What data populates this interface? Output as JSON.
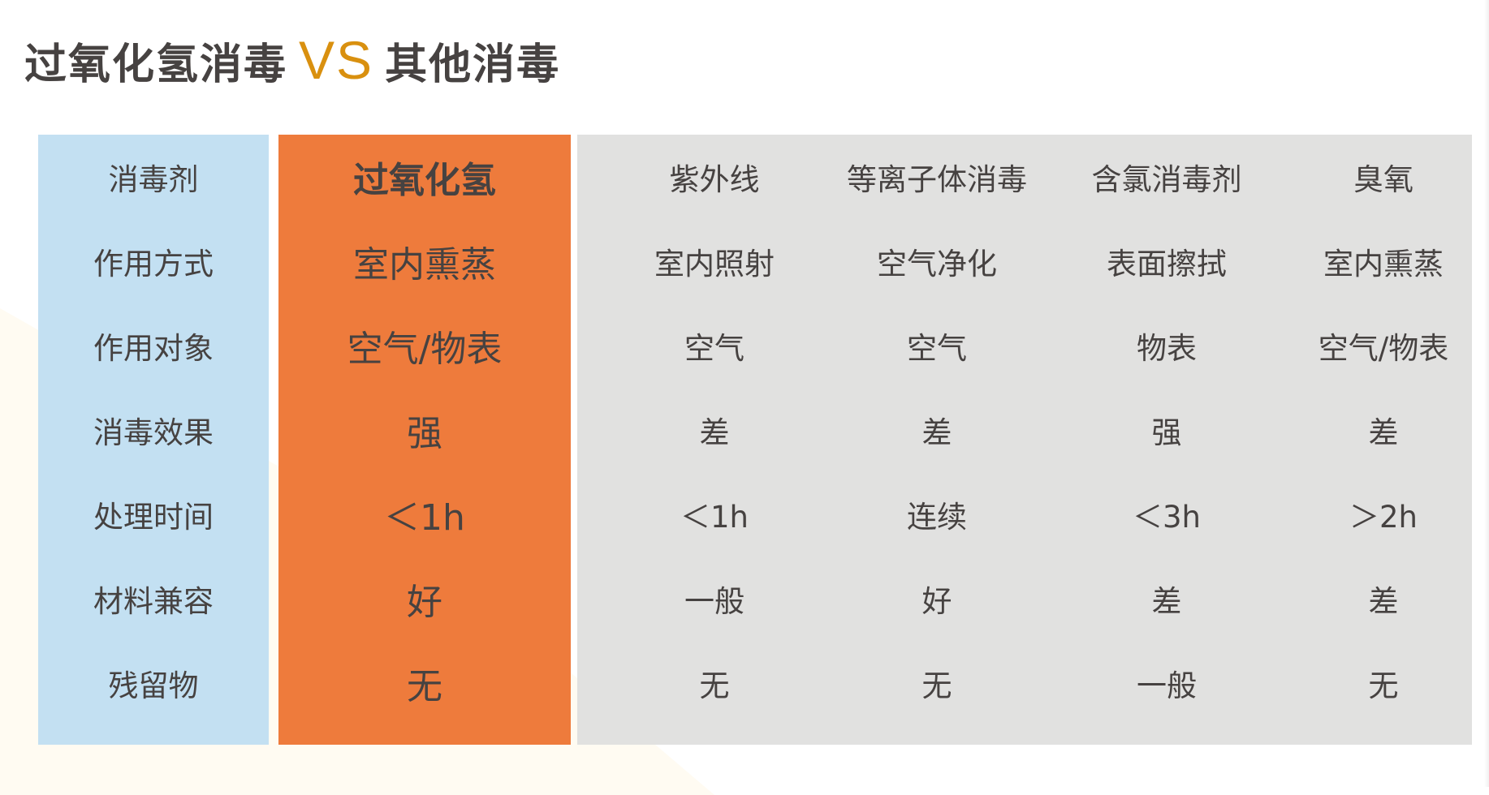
{
  "title": {
    "left": "过氧化氢消毒",
    "vs": "VS",
    "right": "其他消毒"
  },
  "colors": {
    "label_column": "#c3e0f2",
    "highlight_column": "#ee7b3c",
    "other_columns": "#e1e1e0",
    "vs": "#d9900f",
    "text": "#464241"
  },
  "table": {
    "row_labels": [
      "消毒剂",
      "作用方式",
      "作用对象",
      "消毒效果",
      "处理时间",
      "材料兼容",
      "残留物"
    ],
    "highlight": [
      "过氧化氢",
      "室内熏蒸",
      "空气/物表",
      "强",
      "＜1h",
      "好",
      "无"
    ],
    "others": [
      [
        "紫外线",
        "室内照射",
        "空气",
        "差",
        "＜1h",
        "一般",
        "无"
      ],
      [
        "等离子体消毒",
        "空气净化",
        "空气",
        "差",
        "连续",
        "好",
        "无"
      ],
      [
        "含氯消毒剂",
        "表面擦拭",
        "物表",
        "强",
        "＜3h",
        "差",
        "一般"
      ],
      [
        "臭氧",
        "室内熏蒸",
        "空气/物表",
        "差",
        "＞2h",
        "差",
        "无"
      ]
    ]
  }
}
